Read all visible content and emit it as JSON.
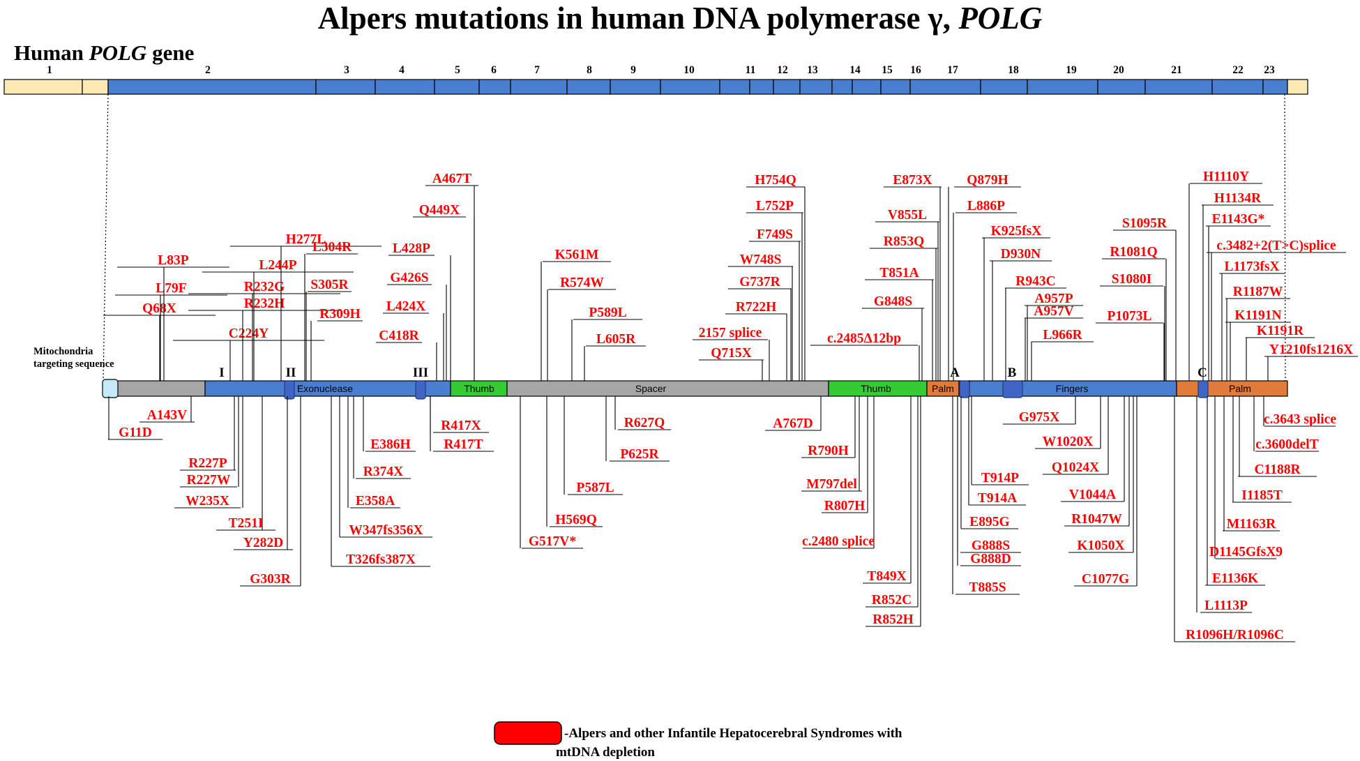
{
  "title": {
    "main": "Alpers mutations in human DNA polymerase γ, ",
    "italic": "POLG"
  },
  "gene_label": {
    "prefix": "Human ",
    "italic": "POLG",
    "suffix": " gene"
  },
  "colors": {
    "utr": "#fde9b4",
    "exon": "#4a7fd0",
    "spacer": "#a6a6a6",
    "thumb": "#33cc33",
    "palm": "#e07b39",
    "mts": "#c6e9f7",
    "motif": "#3f66c4",
    "mutation": "#ff0000"
  },
  "exons": [
    {
      "label": "1"
    },
    {
      "label": "2"
    },
    {
      "label": "3"
    },
    {
      "label": "4"
    },
    {
      "label": "5"
    },
    {
      "label": "6"
    },
    {
      "label": "7"
    },
    {
      "label": "8"
    },
    {
      "label": "9"
    },
    {
      "label": "10"
    },
    {
      "label": "11"
    },
    {
      "label": "12"
    },
    {
      "label": "13"
    },
    {
      "label": "14"
    },
    {
      "label": "15"
    },
    {
      "label": "16"
    },
    {
      "label": "17"
    },
    {
      "label": "18"
    },
    {
      "label": "19"
    },
    {
      "label": "20"
    },
    {
      "label": "21"
    },
    {
      "label": "22"
    },
    {
      "label": "23"
    }
  ],
  "protein": {
    "mts_label": [
      "Mitochondria",
      "targeting sequence"
    ],
    "domains": [
      "Exonuclease",
      "Thumb",
      "Spacer",
      "Thumb",
      "Palm",
      "Fingers",
      "Palm"
    ],
    "motifs": [
      "I",
      "II",
      "III",
      "A",
      "B",
      "C"
    ]
  },
  "mutations_above": [
    "Q68X",
    "L79F",
    "L83P",
    "C224Y",
    "R232H",
    "R232G",
    "L244P",
    "H277L",
    "R309H",
    "S305R",
    "L304R",
    "C418R",
    "L424X",
    "G426S",
    "L428P",
    "Q449X",
    "A467T",
    "K561M",
    "R574W",
    "P589L",
    "L605R",
    "Q715X",
    "2157 splice",
    "R722H",
    "G737R",
    "W748S",
    "F749S",
    "L752P",
    "H754Q",
    "c.2485Δ12bp",
    "G848S",
    "T851A",
    "R853Q",
    "V855L",
    "E873X",
    "Q879H",
    "L886P",
    "K925fsX",
    "D930N",
    "R943C",
    "A957P",
    "A957V",
    "L966R",
    "P1073L",
    "S1080I",
    "R1081Q",
    "S1095R",
    "H1110Y",
    "H1134R",
    "E1143G*",
    "c.3482+2(T>C)splice",
    "L1173fsX",
    "R1187W",
    "K1191N",
    "K1191R",
    "Y1210fs1216X"
  ],
  "mutations_below": [
    "G11D",
    "A143V",
    "R227P",
    "R227W",
    "W235X",
    "T251I",
    "Y282D",
    "G303R",
    "T326fs387X",
    "W347fs356X",
    "E358A",
    "R374X",
    "E386H",
    "R417X",
    "R417T",
    "G517V*",
    "H569Q",
    "P587L",
    "P625R",
    "R627Q",
    "A767D",
    "R790H",
    "M797del",
    "R807H",
    "c.2480 splice",
    "T849X",
    "R852C",
    "R852H",
    "T885S",
    "G888D",
    "G888S",
    "E895G",
    "T914A",
    "T914P",
    "G975X",
    "W1020X",
    "Q1024X",
    "V1044A",
    "R1047W",
    "K1050X",
    "C1077G",
    "R1096H/R1096C",
    "L1113P",
    "E1136K",
    "D1145GfsX9",
    "M1163R",
    "I1185T",
    "C1188R",
    "c.3600delT",
    "c.3643 splice"
  ],
  "legend": {
    "line1": "-Alpers and other  Infantile Hepatocerebral Syndromes with",
    "line2": "mtDNA depletion"
  }
}
